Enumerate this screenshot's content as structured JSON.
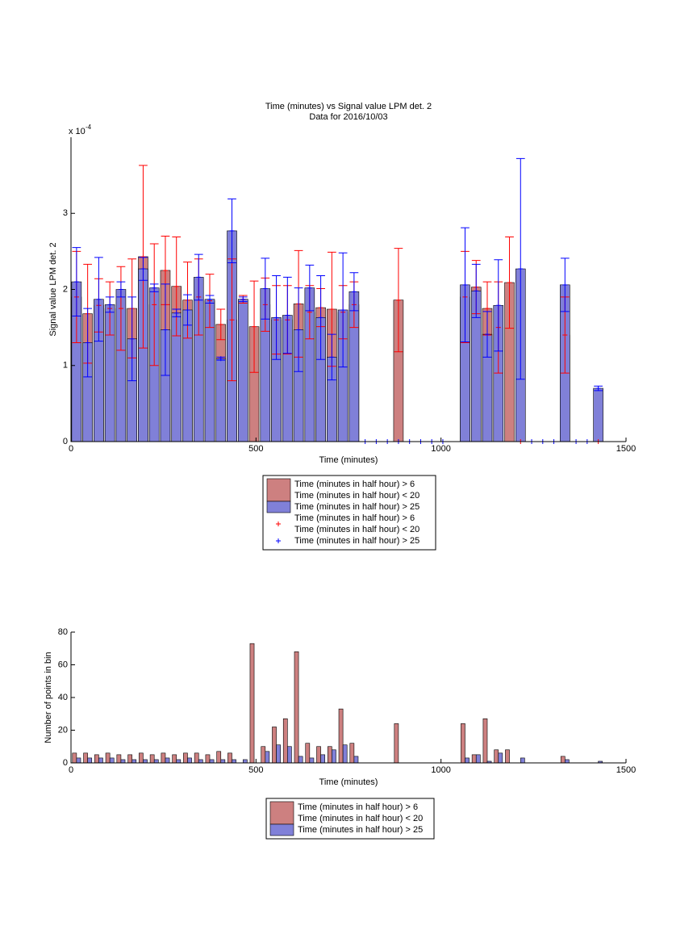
{
  "chart_data": [
    {
      "type": "bar",
      "barmode": "overlay",
      "title": "Time (minutes) vs Signal value LPM det. 2",
      "subtitle": "Data for 2016/10/03",
      "y_multiplier": {
        "base": "x 10",
        "exponent": "-4"
      },
      "x_label": "Time (minutes)",
      "y_label": "Signal value LPM det. 2",
      "x": [
        15,
        45,
        75,
        105,
        135,
        165,
        195,
        225,
        255,
        285,
        315,
        345,
        375,
        405,
        435,
        465,
        495,
        525,
        555,
        585,
        615,
        645,
        675,
        705,
        735,
        765,
        795,
        825,
        855,
        885,
        915,
        945,
        975,
        1005,
        1035,
        1065,
        1095,
        1125,
        1155,
        1185,
        1215,
        1245,
        1275,
        1305,
        1335,
        1365,
        1395,
        1425
      ],
      "xlim": [
        0,
        1500
      ],
      "xticks": [
        0,
        500,
        1000,
        1500
      ],
      "ylim": [
        0,
        4
      ],
      "yticks": [
        0,
        1,
        2,
        3
      ],
      "series": [
        {
          "name": [
            "Time (minutes in half hour) > 6",
            "Time (minutes in half hour) < 20"
          ],
          "mark": "bar",
          "color": "#cd8080",
          "line_color": "#ff0000",
          "values": [
            1.9,
            1.68,
            1.79,
            1.75,
            1.75,
            1.75,
            2.43,
            1.8,
            2.25,
            2.04,
            1.86,
            1.9,
            1.85,
            1.54,
            1.6,
            1.87,
            1.51,
            1.8,
            1.6,
            1.6,
            1.81,
            1.7,
            1.76,
            1.74,
            1.7,
            1.8,
            null,
            null,
            null,
            1.86,
            null,
            null,
            null,
            null,
            null,
            1.9,
            2.03,
            1.75,
            1.5,
            2.09,
            null,
            null,
            null,
            null,
            1.4,
            null,
            null,
            null
          ],
          "errors": [
            0.6,
            0.65,
            0.35,
            0.35,
            0.55,
            0.65,
            1.2,
            0.8,
            0.45,
            0.65,
            0.5,
            0.5,
            0.35,
            0.2,
            0.8,
            0.05,
            0.6,
            0.35,
            0.45,
            0.45,
            0.7,
            0.35,
            0.25,
            0.75,
            0.35,
            0.3,
            null,
            null,
            null,
            0.68,
            null,
            null,
            null,
            null,
            null,
            0.6,
            0.35,
            0.35,
            0.6,
            0.6,
            null,
            null,
            null,
            null,
            0.5,
            null,
            null,
            null
          ]
        },
        {
          "name": [
            "Time (minutes in half hour) > 25"
          ],
          "mark": "bar",
          "color": "#8080d8",
          "line_color": "#0000ff",
          "values": [
            2.1,
            1.3,
            1.87,
            1.8,
            2.0,
            1.35,
            2.27,
            2.02,
            1.47,
            1.69,
            1.73,
            2.16,
            1.87,
            1.09,
            2.77,
            1.87,
            null,
            2.01,
            1.63,
            1.66,
            1.47,
            2.02,
            1.63,
            1.11,
            1.73,
            1.97,
            null,
            null,
            null,
            null,
            null,
            null,
            null,
            null,
            null,
            2.06,
            1.98,
            1.41,
            1.79,
            null,
            2.27,
            null,
            null,
            null,
            2.06,
            null,
            null,
            0.7
          ],
          "errors": [
            0.45,
            0.45,
            0.55,
            0.1,
            0.1,
            0.55,
            0.15,
            0.05,
            0.6,
            0.05,
            0.2,
            0.3,
            0.05,
            0.02,
            0.42,
            0.03,
            null,
            0.4,
            0.55,
            0.5,
            0.55,
            0.3,
            0.55,
            0.3,
            0.75,
            0.25,
            null,
            null,
            null,
            null,
            null,
            null,
            null,
            null,
            null,
            0.75,
            0.35,
            0.3,
            0.6,
            null,
            1.45,
            null,
            null,
            null,
            0.35,
            null,
            null,
            0.03
          ]
        },
        {
          "name": [
            "Time (minutes in half hour) > 6",
            "Time (minutes in half hour) < 20"
          ],
          "mark": "plus",
          "color": "#ff0000",
          "values": [
            null,
            null,
            null,
            null,
            null,
            null,
            null,
            null,
            null,
            null,
            null,
            null,
            null,
            null,
            null,
            null,
            null,
            null,
            null,
            null,
            null,
            null,
            null,
            null,
            null,
            null,
            null,
            null,
            null,
            null,
            null,
            null,
            null,
            null,
            null,
            null,
            null,
            null,
            null,
            null,
            0,
            null,
            null,
            null,
            null,
            null,
            null,
            0
          ]
        },
        {
          "name": [
            "Time (minutes in half hour) > 25"
          ],
          "mark": "plus",
          "color": "#0000ff",
          "values": [
            null,
            null,
            null,
            null,
            null,
            null,
            null,
            null,
            null,
            null,
            null,
            null,
            null,
            null,
            null,
            null,
            null,
            null,
            null,
            null,
            null,
            null,
            null,
            null,
            null,
            null,
            0,
            0,
            0,
            0,
            0,
            0,
            0,
            0,
            null,
            null,
            null,
            null,
            null,
            null,
            null,
            0,
            0,
            0,
            null,
            0,
            0,
            null
          ]
        }
      ]
    },
    {
      "type": "bar",
      "barmode": "grouped",
      "x_label": "Time (minutes)",
      "y_label": "Number of points in bin",
      "x": [
        15,
        45,
        75,
        105,
        135,
        165,
        195,
        225,
        255,
        285,
        315,
        345,
        375,
        405,
        435,
        465,
        495,
        525,
        555,
        585,
        615,
        645,
        675,
        705,
        735,
        765,
        795,
        825,
        855,
        885,
        915,
        945,
        975,
        1005,
        1035,
        1065,
        1095,
        1125,
        1155,
        1185,
        1215,
        1245,
        1275,
        1305,
        1335,
        1365,
        1395,
        1425
      ],
      "xlim": [
        0,
        1500
      ],
      "xticks": [
        0,
        500,
        1000,
        1500
      ],
      "ylim": [
        0,
        80
      ],
      "yticks": [
        0,
        20,
        40,
        60,
        80
      ],
      "series": [
        {
          "name": [
            "Time (minutes in half hour) > 6",
            "Time (minutes in half hour) < 20"
          ],
          "mark": "bar",
          "color": "#cd8080",
          "values": [
            6,
            6,
            5,
            6,
            5,
            5,
            6,
            5,
            6,
            5,
            6,
            6,
            5,
            7,
            6,
            0,
            73,
            10,
            22,
            27,
            68,
            12,
            10,
            10,
            33,
            12,
            0,
            0,
            0,
            24,
            0,
            0,
            0,
            0,
            0,
            24,
            5,
            27,
            8,
            8,
            0,
            0,
            0,
            0,
            4,
            0,
            0,
            0
          ]
        },
        {
          "name": [
            "Time (minutes in half hour) > 25"
          ],
          "mark": "bar",
          "color": "#8080d8",
          "values": [
            3,
            3,
            3,
            3,
            2,
            2,
            2,
            2,
            3,
            2,
            3,
            2,
            2,
            2,
            2,
            2,
            0,
            7,
            11,
            10,
            4,
            3,
            5,
            8,
            11,
            4,
            0,
            0,
            0,
            0,
            0,
            0,
            0,
            0,
            0,
            3,
            5,
            1,
            6,
            0,
            3,
            0,
            0,
            0,
            2,
            0,
            0,
            1
          ]
        }
      ]
    }
  ]
}
